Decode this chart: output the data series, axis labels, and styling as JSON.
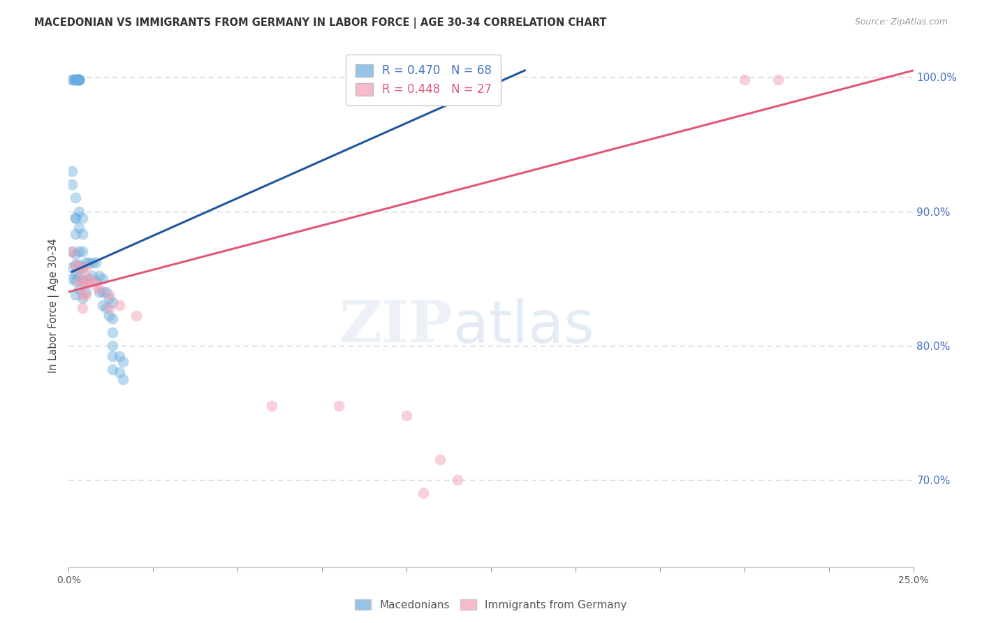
{
  "title": "MACEDONIAN VS IMMIGRANTS FROM GERMANY IN LABOR FORCE | AGE 30-34 CORRELATION CHART",
  "source": "Source: ZipAtlas.com",
  "ylabel": "In Labor Force | Age 30-34",
  "xmin": 0.0,
  "xmax": 0.25,
  "ymin": 0.635,
  "ymax": 1.025,
  "yticks": [
    0.7,
    0.8,
    0.9,
    1.0
  ],
  "ytick_labels": [
    "70.0%",
    "80.0%",
    "90.0%",
    "100.0%"
  ],
  "blue_color": "#6aabdd",
  "pink_color": "#f4a0b4",
  "blue_line_color": "#2255a0",
  "pink_line_color": "#e05878",
  "blue_scatter": [
    [
      0.001,
      0.998
    ],
    [
      0.001,
      0.998
    ],
    [
      0.002,
      0.998
    ],
    [
      0.002,
      0.998
    ],
    [
      0.002,
      0.998
    ],
    [
      0.002,
      0.998
    ],
    [
      0.002,
      0.998
    ],
    [
      0.003,
      0.998
    ],
    [
      0.003,
      0.998
    ],
    [
      0.003,
      0.998
    ],
    [
      0.003,
      0.998
    ],
    [
      0.003,
      0.998
    ],
    [
      0.003,
      0.998
    ],
    [
      0.001,
      0.93
    ],
    [
      0.001,
      0.92
    ],
    [
      0.002,
      0.91
    ],
    [
      0.002,
      0.895
    ],
    [
      0.001,
      0.87
    ],
    [
      0.002,
      0.895
    ],
    [
      0.002,
      0.883
    ],
    [
      0.003,
      0.9
    ],
    [
      0.003,
      0.888
    ],
    [
      0.004,
      0.895
    ],
    [
      0.004,
      0.883
    ],
    [
      0.001,
      0.858
    ],
    [
      0.001,
      0.85
    ],
    [
      0.002,
      0.868
    ],
    [
      0.002,
      0.86
    ],
    [
      0.002,
      0.853
    ],
    [
      0.002,
      0.848
    ],
    [
      0.003,
      0.87
    ],
    [
      0.003,
      0.86
    ],
    [
      0.003,
      0.852
    ],
    [
      0.004,
      0.87
    ],
    [
      0.004,
      0.858
    ],
    [
      0.004,
      0.848
    ],
    [
      0.005,
      0.862
    ],
    [
      0.005,
      0.848
    ],
    [
      0.005,
      0.84
    ],
    [
      0.006,
      0.862
    ],
    [
      0.006,
      0.85
    ],
    [
      0.007,
      0.862
    ],
    [
      0.007,
      0.852
    ],
    [
      0.008,
      0.862
    ],
    [
      0.008,
      0.848
    ],
    [
      0.009,
      0.852
    ],
    [
      0.009,
      0.84
    ],
    [
      0.01,
      0.85
    ],
    [
      0.01,
      0.84
    ],
    [
      0.01,
      0.83
    ],
    [
      0.011,
      0.84
    ],
    [
      0.011,
      0.828
    ],
    [
      0.012,
      0.835
    ],
    [
      0.012,
      0.822
    ],
    [
      0.013,
      0.832
    ],
    [
      0.013,
      0.82
    ],
    [
      0.013,
      0.81
    ],
    [
      0.013,
      0.8
    ],
    [
      0.013,
      0.792
    ],
    [
      0.013,
      0.782
    ],
    [
      0.015,
      0.792
    ],
    [
      0.015,
      0.78
    ],
    [
      0.016,
      0.788
    ],
    [
      0.016,
      0.775
    ],
    [
      0.002,
      0.838
    ],
    [
      0.003,
      0.842
    ],
    [
      0.004,
      0.835
    ]
  ],
  "pink_scatter": [
    [
      0.001,
      0.87
    ],
    [
      0.002,
      0.86
    ],
    [
      0.003,
      0.858
    ],
    [
      0.003,
      0.848
    ],
    [
      0.004,
      0.855
    ],
    [
      0.004,
      0.845
    ],
    [
      0.004,
      0.838
    ],
    [
      0.004,
      0.828
    ],
    [
      0.005,
      0.848
    ],
    [
      0.005,
      0.838
    ],
    [
      0.005,
      0.858
    ],
    [
      0.006,
      0.85
    ],
    [
      0.007,
      0.848
    ],
    [
      0.008,
      0.845
    ],
    [
      0.009,
      0.842
    ],
    [
      0.012,
      0.838
    ],
    [
      0.012,
      0.828
    ],
    [
      0.015,
      0.83
    ],
    [
      0.02,
      0.822
    ],
    [
      0.06,
      0.755
    ],
    [
      0.08,
      0.755
    ],
    [
      0.1,
      0.748
    ],
    [
      0.105,
      0.69
    ],
    [
      0.11,
      0.715
    ],
    [
      0.115,
      0.7
    ],
    [
      0.2,
      0.998
    ],
    [
      0.21,
      0.998
    ]
  ],
  "blue_line_x": [
    0.001,
    0.135
  ],
  "blue_line_y": [
    0.855,
    1.005
  ],
  "pink_line_x": [
    0.0,
    0.25
  ],
  "pink_line_y": [
    0.84,
    1.005
  ],
  "xtick_positions": [
    0.0,
    0.025,
    0.05,
    0.075,
    0.1,
    0.125,
    0.15,
    0.175,
    0.2,
    0.225,
    0.25
  ],
  "xtick_labels_visible": [
    "0.0%",
    "",
    "",
    "",
    "",
    "",
    "",
    "",
    "",
    "",
    "25.0%"
  ]
}
